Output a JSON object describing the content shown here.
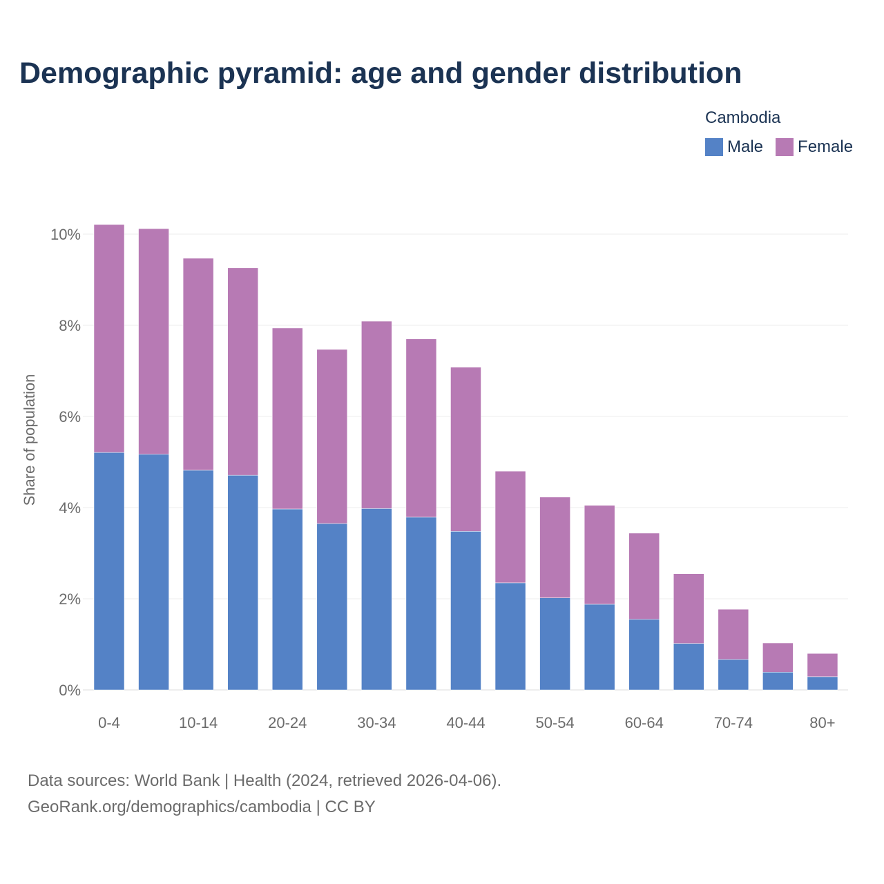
{
  "chart_data": {
    "type": "bar",
    "stacked": true,
    "title": "Demographic pyramid: age and gender distribution",
    "legend_title": "Cambodia",
    "ylabel": "Share of population",
    "xlabel": "",
    "ylim": [
      0,
      10
    ],
    "yticks": [
      0,
      2,
      4,
      6,
      8,
      10
    ],
    "ytick_labels": [
      "0%",
      "2%",
      "4%",
      "6%",
      "8%",
      "10%"
    ],
    "categories": [
      "0-4",
      "5-9",
      "10-14",
      "15-19",
      "20-24",
      "25-29",
      "30-34",
      "35-39",
      "40-44",
      "45-49",
      "50-54",
      "55-59",
      "60-64",
      "65-69",
      "70-74",
      "75-79",
      "80+"
    ],
    "xtick_labels": [
      "0-4",
      "10-14",
      "20-24",
      "30-34",
      "40-44",
      "50-54",
      "60-64",
      "70-74",
      "80+"
    ],
    "grid": true,
    "legend_position": "top-right",
    "series": [
      {
        "name": "Male",
        "color": "#5482c6",
        "values": [
          5.21,
          5.17,
          4.82,
          4.71,
          3.97,
          3.65,
          3.98,
          3.79,
          3.48,
          2.35,
          2.02,
          1.88,
          1.55,
          1.02,
          0.67,
          0.39,
          0.29
        ]
      },
      {
        "name": "Female",
        "color": "#b77ab4",
        "values": [
          5.0,
          4.95,
          4.65,
          4.55,
          3.97,
          3.82,
          4.11,
          3.91,
          3.6,
          2.45,
          2.21,
          2.17,
          1.89,
          1.53,
          1.1,
          0.64,
          0.51
        ]
      }
    ]
  },
  "footer": {
    "line1": "Data sources: World Bank | Health (2024, retrieved 2026-04-06).",
    "line2": "GeoRank.org/demographics/cambodia | CC BY"
  }
}
